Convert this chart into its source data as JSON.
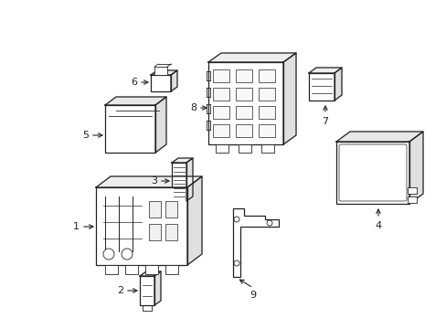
{
  "background_color": "#ffffff",
  "line_color": "#222222",
  "label_color": "#000000",
  "fig_width": 4.89,
  "fig_height": 3.6,
  "dpi": 100
}
